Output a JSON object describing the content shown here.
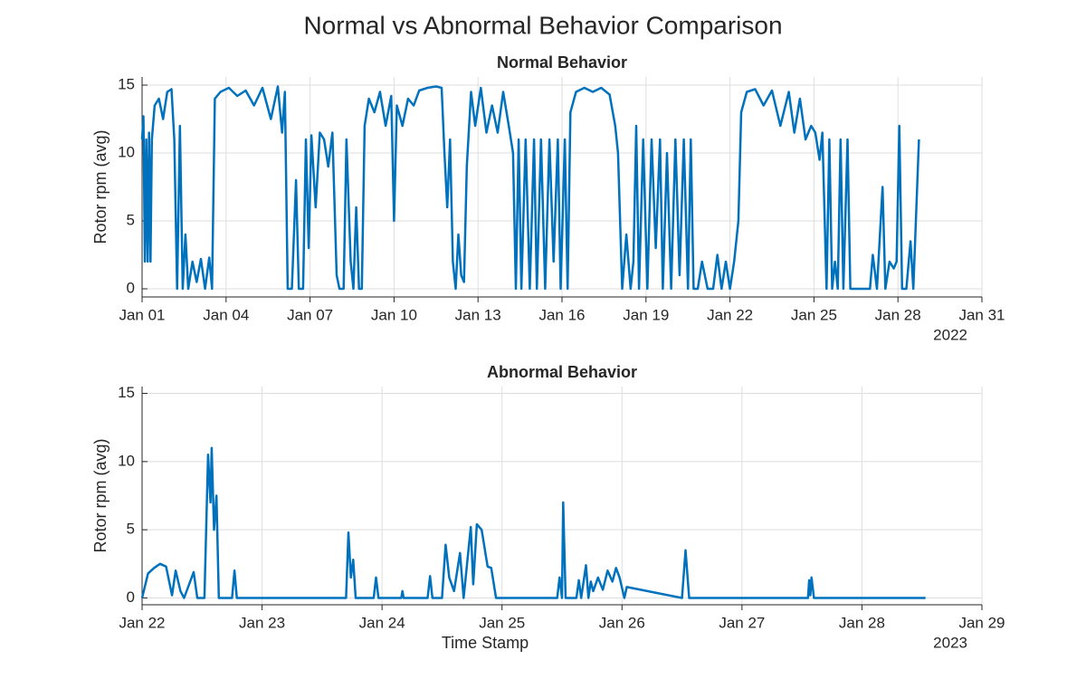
{
  "title": "Normal vs Abnormal Behavior Comparison",
  "chart_data": [
    {
      "type": "line",
      "title": "Normal Behavior",
      "ylabel": "Rotor rpm (avg)",
      "x_secondary_label": "2022",
      "xlim": [
        1,
        31
      ],
      "ylim": [
        -0.6,
        15.6
      ],
      "grid": true,
      "xticks": [
        {
          "value": 1,
          "label": "Jan 01"
        },
        {
          "value": 4,
          "label": "Jan 04"
        },
        {
          "value": 7,
          "label": "Jan 07"
        },
        {
          "value": 10,
          "label": "Jan 10"
        },
        {
          "value": 13,
          "label": "Jan 13"
        },
        {
          "value": 16,
          "label": "Jan 16"
        },
        {
          "value": 19,
          "label": "Jan 19"
        },
        {
          "value": 22,
          "label": "Jan 22"
        },
        {
          "value": 25,
          "label": "Jan 25"
        },
        {
          "value": 28,
          "label": "Jan 28"
        },
        {
          "value": 31,
          "label": "Jan 31"
        }
      ],
      "yticks": [
        0,
        5,
        10,
        15
      ],
      "x": [
        1.0,
        1.05,
        1.1,
        1.15,
        1.2,
        1.25,
        1.3,
        1.35,
        1.45,
        1.6,
        1.75,
        1.9,
        2.05,
        2.15,
        2.25,
        2.35,
        2.45,
        2.55,
        2.65,
        2.8,
        2.95,
        3.1,
        3.25,
        3.4,
        3.5,
        3.6,
        3.8,
        4.1,
        4.4,
        4.7,
        5.0,
        5.3,
        5.6,
        5.85,
        6.0,
        6.1,
        6.2,
        6.35,
        6.5,
        6.6,
        6.75,
        6.85,
        6.95,
        7.05,
        7.2,
        7.35,
        7.5,
        7.65,
        7.8,
        7.95,
        8.05,
        8.2,
        8.3,
        8.45,
        8.55,
        8.65,
        8.75,
        8.85,
        8.95,
        9.1,
        9.3,
        9.5,
        9.7,
        9.9,
        10.0,
        10.1,
        10.3,
        10.5,
        10.7,
        10.9,
        11.2,
        11.5,
        11.7,
        11.8,
        11.9,
        12.0,
        12.1,
        12.2,
        12.3,
        12.4,
        12.5,
        12.6,
        12.75,
        12.9,
        13.1,
        13.3,
        13.5,
        13.7,
        13.9,
        14.1,
        14.25,
        14.35,
        14.45,
        14.55,
        14.7,
        14.85,
        15.0,
        15.1,
        15.25,
        15.4,
        15.55,
        15.7,
        15.85,
        15.95,
        16.1,
        16.2,
        16.3,
        16.5,
        16.8,
        17.1,
        17.4,
        17.7,
        17.9,
        18.0,
        18.15,
        18.3,
        18.45,
        18.55,
        18.65,
        18.75,
        18.9,
        19.05,
        19.2,
        19.35,
        19.5,
        19.6,
        19.75,
        19.9,
        20.05,
        20.2,
        20.35,
        20.5,
        20.6,
        20.7,
        20.85,
        21.0,
        21.2,
        21.4,
        21.55,
        21.7,
        21.85,
        22.0,
        22.15,
        22.3,
        22.4,
        22.6,
        22.9,
        23.2,
        23.5,
        23.8,
        24.1,
        24.3,
        24.5,
        24.7,
        24.9,
        25.05,
        25.2,
        25.3,
        25.45,
        25.55,
        25.65,
        25.75,
        25.85,
        25.95,
        26.05,
        26.2,
        26.3,
        26.5,
        26.7,
        26.85,
        27.0,
        27.1,
        27.25,
        27.45,
        27.55,
        27.7,
        27.85,
        27.95,
        28.05,
        28.15,
        28.3,
        28.45,
        28.55,
        28.75
      ],
      "series": [
        {
          "color": "#0072bd",
          "values": [
            11,
            12.7,
            2,
            11,
            2,
            11.5,
            2,
            11,
            13.5,
            14,
            12.5,
            14.5,
            14.7,
            11,
            0,
            12,
            0,
            4,
            0,
            2,
            0.5,
            2.2,
            0,
            2.3,
            0,
            14,
            14.5,
            14.8,
            14.2,
            14.6,
            13.5,
            14.8,
            12.5,
            14.9,
            11.5,
            14.5,
            0,
            0,
            8,
            0,
            0,
            11,
            3,
            11.3,
            6,
            11.5,
            11,
            9,
            11.5,
            1,
            0,
            0,
            11,
            2,
            0,
            6,
            0,
            0,
            12,
            14,
            13,
            14.5,
            12,
            14.2,
            5,
            13.5,
            12,
            14,
            13.5,
            14.6,
            14.8,
            14.9,
            14.8,
            10,
            6,
            11,
            2,
            0,
            4,
            1,
            0.5,
            9,
            14.5,
            12,
            14.8,
            11.5,
            13.5,
            11.5,
            14.5,
            12,
            10,
            0,
            11,
            0,
            11,
            0,
            11,
            0,
            11,
            0,
            11,
            2,
            11,
            0,
            11,
            0,
            13,
            14.5,
            14.8,
            14.5,
            14.8,
            14.3,
            12,
            10,
            0,
            4,
            0,
            2,
            12,
            0,
            11,
            0,
            11,
            3,
            11,
            0,
            10,
            0,
            11,
            1,
            11,
            0,
            11,
            0,
            0,
            2,
            0,
            0,
            2.5,
            0,
            2,
            0,
            2,
            5,
            13,
            14.5,
            14.7,
            13.5,
            14.6,
            12,
            14.5,
            11.5,
            14,
            11,
            12,
            11.5,
            9.5,
            11.5,
            0,
            11,
            0,
            2,
            0,
            11,
            0,
            11,
            0,
            0,
            0,
            0,
            0,
            2.5,
            0,
            7.5,
            0,
            2,
            1.5,
            2,
            12,
            0,
            0,
            3.5,
            0,
            11
          ]
        }
      ]
    },
    {
      "type": "line",
      "title": "Abnormal Behavior",
      "ylabel": "Rotor rpm (avg)",
      "xlabel": "Time Stamp",
      "x_secondary_label": "2023",
      "xlim": [
        22,
        29
      ],
      "ylim": [
        -0.5,
        15.5
      ],
      "grid": true,
      "xticks": [
        {
          "value": 22,
          "label": "Jan 22"
        },
        {
          "value": 23,
          "label": "Jan 23"
        },
        {
          "value": 24,
          "label": "Jan 24"
        },
        {
          "value": 25,
          "label": "Jan 25"
        },
        {
          "value": 26,
          "label": "Jan 26"
        },
        {
          "value": 27,
          "label": "Jan 27"
        },
        {
          "value": 28,
          "label": "Jan 28"
        },
        {
          "value": 29,
          "label": "Jan 29"
        }
      ],
      "yticks": [
        0,
        5,
        10,
        15
      ],
      "x": [
        22.0,
        22.05,
        22.1,
        22.15,
        22.2,
        22.25,
        22.28,
        22.32,
        22.35,
        22.43,
        22.46,
        22.52,
        22.55,
        22.57,
        22.58,
        22.6,
        22.62,
        22.64,
        22.75,
        22.77,
        22.79,
        23.7,
        23.72,
        23.74,
        23.76,
        23.78,
        23.93,
        23.95,
        23.97,
        24.16,
        24.17,
        24.18,
        24.38,
        24.4,
        24.42,
        24.5,
        24.53,
        24.56,
        24.6,
        24.65,
        24.68,
        24.74,
        24.76,
        24.79,
        24.83,
        24.88,
        24.91,
        24.95,
        25.46,
        25.48,
        25.5,
        25.51,
        25.53,
        25.62,
        25.64,
        25.66,
        25.7,
        25.72,
        25.74,
        25.76,
        25.8,
        25.84,
        25.88,
        25.92,
        25.95,
        25.98,
        26.02,
        26.04,
        26.5,
        26.53,
        26.56,
        27.55,
        27.56,
        27.57,
        27.58,
        27.6,
        28.53
      ],
      "series": [
        {
          "color": "#0072bd",
          "values": [
            0,
            1.8,
            2.2,
            2.5,
            2.3,
            0.2,
            2.0,
            0.5,
            0,
            1.9,
            0,
            0,
            10.5,
            7,
            11,
            5,
            7.5,
            0,
            0,
            2.0,
            0,
            0,
            4.8,
            1.5,
            2.8,
            0,
            0,
            1.5,
            0,
            0,
            0.5,
            0,
            0,
            1.6,
            0,
            0,
            3.9,
            1.5,
            0.5,
            3.3,
            0,
            5.2,
            1,
            5.4,
            5.0,
            2.3,
            2.2,
            0,
            0,
            1.5,
            0,
            7.0,
            0,
            0,
            1.3,
            0,
            2.4,
            0,
            1.2,
            0.5,
            1.5,
            0.6,
            2,
            1.2,
            2.2,
            1.5,
            0,
            0.8,
            0,
            3.5,
            0,
            0,
            1.3,
            0.2,
            1.5,
            0,
            0
          ]
        }
      ]
    }
  ]
}
